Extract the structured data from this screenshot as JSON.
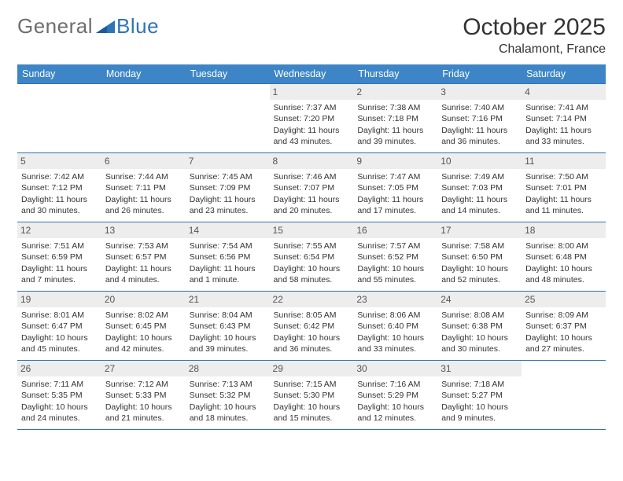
{
  "brand": {
    "part1": "General",
    "part2": "Blue"
  },
  "title": "October 2025",
  "location": "Chalamont, France",
  "colors": {
    "header_bg": "#3d85c6",
    "header_text": "#ffffff",
    "border": "#2f74b5",
    "daynum_bg": "#ededed",
    "text": "#333333",
    "logo_gray": "#6e6e6e",
    "logo_blue": "#2f74b5"
  },
  "days_of_week": [
    "Sunday",
    "Monday",
    "Tuesday",
    "Wednesday",
    "Thursday",
    "Friday",
    "Saturday"
  ],
  "weeks": [
    [
      {
        "n": "",
        "sr": "",
        "ss": "",
        "dl1": "",
        "dl2": ""
      },
      {
        "n": "",
        "sr": "",
        "ss": "",
        "dl1": "",
        "dl2": ""
      },
      {
        "n": "",
        "sr": "",
        "ss": "",
        "dl1": "",
        "dl2": ""
      },
      {
        "n": "1",
        "sr": "Sunrise: 7:37 AM",
        "ss": "Sunset: 7:20 PM",
        "dl1": "Daylight: 11 hours",
        "dl2": "and 43 minutes."
      },
      {
        "n": "2",
        "sr": "Sunrise: 7:38 AM",
        "ss": "Sunset: 7:18 PM",
        "dl1": "Daylight: 11 hours",
        "dl2": "and 39 minutes."
      },
      {
        "n": "3",
        "sr": "Sunrise: 7:40 AM",
        "ss": "Sunset: 7:16 PM",
        "dl1": "Daylight: 11 hours",
        "dl2": "and 36 minutes."
      },
      {
        "n": "4",
        "sr": "Sunrise: 7:41 AM",
        "ss": "Sunset: 7:14 PM",
        "dl1": "Daylight: 11 hours",
        "dl2": "and 33 minutes."
      }
    ],
    [
      {
        "n": "5",
        "sr": "Sunrise: 7:42 AM",
        "ss": "Sunset: 7:12 PM",
        "dl1": "Daylight: 11 hours",
        "dl2": "and 30 minutes."
      },
      {
        "n": "6",
        "sr": "Sunrise: 7:44 AM",
        "ss": "Sunset: 7:11 PM",
        "dl1": "Daylight: 11 hours",
        "dl2": "and 26 minutes."
      },
      {
        "n": "7",
        "sr": "Sunrise: 7:45 AM",
        "ss": "Sunset: 7:09 PM",
        "dl1": "Daylight: 11 hours",
        "dl2": "and 23 minutes."
      },
      {
        "n": "8",
        "sr": "Sunrise: 7:46 AM",
        "ss": "Sunset: 7:07 PM",
        "dl1": "Daylight: 11 hours",
        "dl2": "and 20 minutes."
      },
      {
        "n": "9",
        "sr": "Sunrise: 7:47 AM",
        "ss": "Sunset: 7:05 PM",
        "dl1": "Daylight: 11 hours",
        "dl2": "and 17 minutes."
      },
      {
        "n": "10",
        "sr": "Sunrise: 7:49 AM",
        "ss": "Sunset: 7:03 PM",
        "dl1": "Daylight: 11 hours",
        "dl2": "and 14 minutes."
      },
      {
        "n": "11",
        "sr": "Sunrise: 7:50 AM",
        "ss": "Sunset: 7:01 PM",
        "dl1": "Daylight: 11 hours",
        "dl2": "and 11 minutes."
      }
    ],
    [
      {
        "n": "12",
        "sr": "Sunrise: 7:51 AM",
        "ss": "Sunset: 6:59 PM",
        "dl1": "Daylight: 11 hours",
        "dl2": "and 7 minutes."
      },
      {
        "n": "13",
        "sr": "Sunrise: 7:53 AM",
        "ss": "Sunset: 6:57 PM",
        "dl1": "Daylight: 11 hours",
        "dl2": "and 4 minutes."
      },
      {
        "n": "14",
        "sr": "Sunrise: 7:54 AM",
        "ss": "Sunset: 6:56 PM",
        "dl1": "Daylight: 11 hours",
        "dl2": "and 1 minute."
      },
      {
        "n": "15",
        "sr": "Sunrise: 7:55 AM",
        "ss": "Sunset: 6:54 PM",
        "dl1": "Daylight: 10 hours",
        "dl2": "and 58 minutes."
      },
      {
        "n": "16",
        "sr": "Sunrise: 7:57 AM",
        "ss": "Sunset: 6:52 PM",
        "dl1": "Daylight: 10 hours",
        "dl2": "and 55 minutes."
      },
      {
        "n": "17",
        "sr": "Sunrise: 7:58 AM",
        "ss": "Sunset: 6:50 PM",
        "dl1": "Daylight: 10 hours",
        "dl2": "and 52 minutes."
      },
      {
        "n": "18",
        "sr": "Sunrise: 8:00 AM",
        "ss": "Sunset: 6:48 PM",
        "dl1": "Daylight: 10 hours",
        "dl2": "and 48 minutes."
      }
    ],
    [
      {
        "n": "19",
        "sr": "Sunrise: 8:01 AM",
        "ss": "Sunset: 6:47 PM",
        "dl1": "Daylight: 10 hours",
        "dl2": "and 45 minutes."
      },
      {
        "n": "20",
        "sr": "Sunrise: 8:02 AM",
        "ss": "Sunset: 6:45 PM",
        "dl1": "Daylight: 10 hours",
        "dl2": "and 42 minutes."
      },
      {
        "n": "21",
        "sr": "Sunrise: 8:04 AM",
        "ss": "Sunset: 6:43 PM",
        "dl1": "Daylight: 10 hours",
        "dl2": "and 39 minutes."
      },
      {
        "n": "22",
        "sr": "Sunrise: 8:05 AM",
        "ss": "Sunset: 6:42 PM",
        "dl1": "Daylight: 10 hours",
        "dl2": "and 36 minutes."
      },
      {
        "n": "23",
        "sr": "Sunrise: 8:06 AM",
        "ss": "Sunset: 6:40 PM",
        "dl1": "Daylight: 10 hours",
        "dl2": "and 33 minutes."
      },
      {
        "n": "24",
        "sr": "Sunrise: 8:08 AM",
        "ss": "Sunset: 6:38 PM",
        "dl1": "Daylight: 10 hours",
        "dl2": "and 30 minutes."
      },
      {
        "n": "25",
        "sr": "Sunrise: 8:09 AM",
        "ss": "Sunset: 6:37 PM",
        "dl1": "Daylight: 10 hours",
        "dl2": "and 27 minutes."
      }
    ],
    [
      {
        "n": "26",
        "sr": "Sunrise: 7:11 AM",
        "ss": "Sunset: 5:35 PM",
        "dl1": "Daylight: 10 hours",
        "dl2": "and 24 minutes."
      },
      {
        "n": "27",
        "sr": "Sunrise: 7:12 AM",
        "ss": "Sunset: 5:33 PM",
        "dl1": "Daylight: 10 hours",
        "dl2": "and 21 minutes."
      },
      {
        "n": "28",
        "sr": "Sunrise: 7:13 AM",
        "ss": "Sunset: 5:32 PM",
        "dl1": "Daylight: 10 hours",
        "dl2": "and 18 minutes."
      },
      {
        "n": "29",
        "sr": "Sunrise: 7:15 AM",
        "ss": "Sunset: 5:30 PM",
        "dl1": "Daylight: 10 hours",
        "dl2": "and 15 minutes."
      },
      {
        "n": "30",
        "sr": "Sunrise: 7:16 AM",
        "ss": "Sunset: 5:29 PM",
        "dl1": "Daylight: 10 hours",
        "dl2": "and 12 minutes."
      },
      {
        "n": "31",
        "sr": "Sunrise: 7:18 AM",
        "ss": "Sunset: 5:27 PM",
        "dl1": "Daylight: 10 hours",
        "dl2": "and 9 minutes."
      },
      {
        "n": "",
        "sr": "",
        "ss": "",
        "dl1": "",
        "dl2": ""
      }
    ]
  ]
}
